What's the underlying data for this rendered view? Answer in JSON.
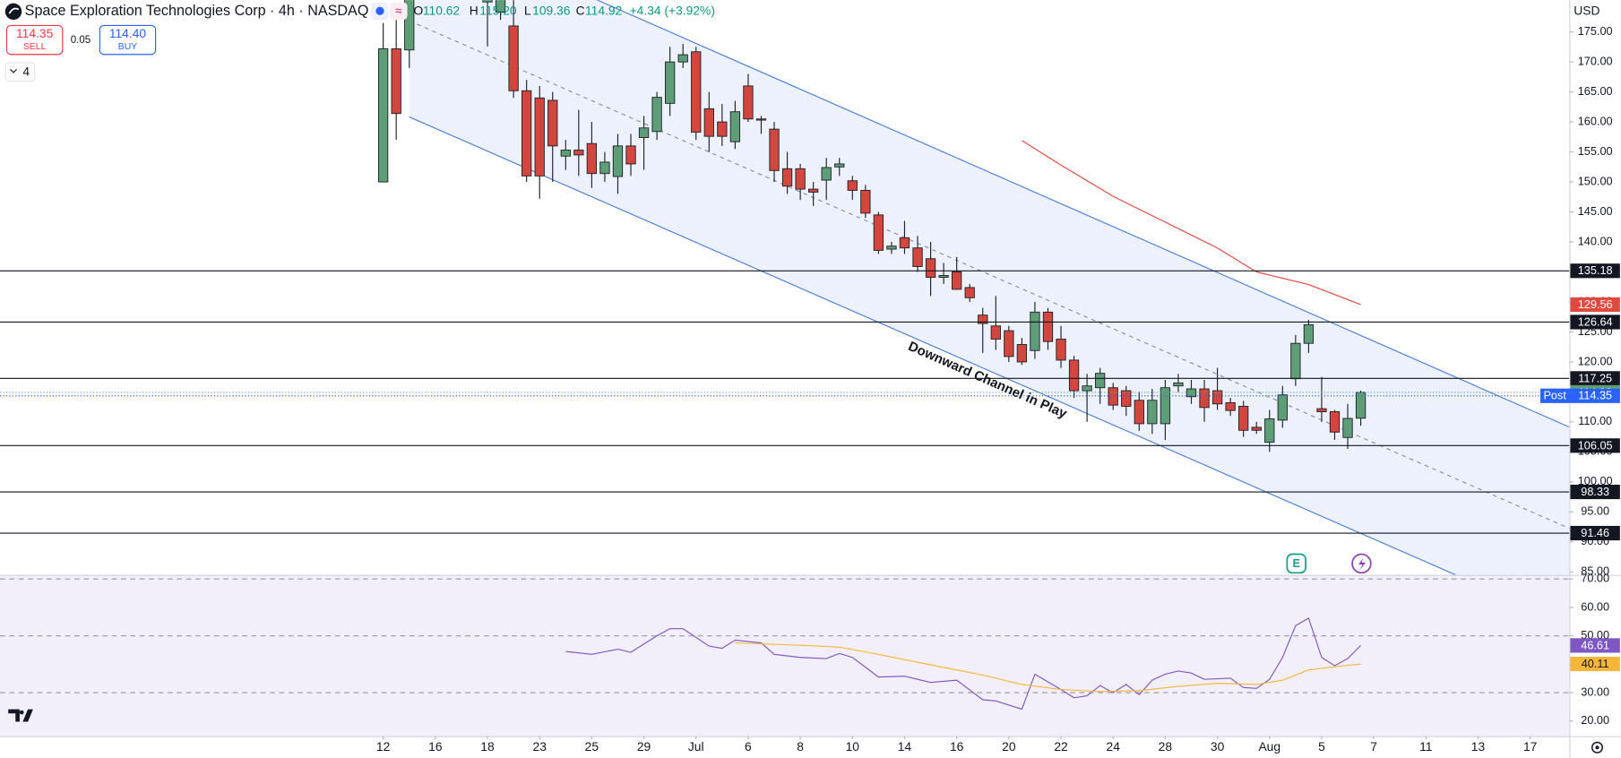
{
  "header": {
    "symbol": "Space Exploration Technologies Corp · 4h · NASDAQ",
    "ohlc": [
      {
        "label": "O",
        "value": "110.62"
      },
      {
        "label": "H",
        "value": "115.20"
      },
      {
        "label": "L",
        "value": "109.36"
      },
      {
        "label": "C",
        "value": "114.92"
      }
    ],
    "change": "+4.34 (+3.92%)"
  },
  "trade": {
    "sell_price": "114.35",
    "sell_label": "SELL",
    "spread": "0.05",
    "buy_price": "114.40",
    "buy_label": "BUY"
  },
  "indicators_count": "4",
  "currency": "USD",
  "chart_data": [
    {
      "type": "candlestick",
      "annotation": "Downward Channel in Play",
      "up_color": "#5e9e76",
      "down_color": "#d2463d",
      "x": [
        0,
        1,
        2,
        8,
        9,
        10,
        11,
        12,
        13,
        14,
        15,
        16,
        17,
        18,
        19,
        20,
        21,
        22,
        23,
        24,
        25,
        26,
        27,
        28,
        29,
        30,
        31,
        32,
        33,
        34,
        35,
        36,
        37,
        38,
        39,
        40,
        41,
        42,
        43,
        44,
        45,
        46,
        47,
        48,
        49,
        50,
        51,
        52,
        53,
        54,
        55,
        56,
        57,
        58,
        59,
        60,
        61,
        62,
        63,
        64,
        65,
        66,
        67,
        68,
        69,
        70,
        71,
        72,
        73,
        74,
        75
      ],
      "open": [
        150,
        172.2,
        172,
        180,
        178.3,
        176,
        165.2,
        164,
        163.6,
        154.3,
        155.3,
        156.4,
        151.4,
        150.9,
        156,
        157.4,
        158.4,
        163.1,
        170,
        171.7,
        162.2,
        160,
        156.7,
        166,
        160.5,
        158.8,
        152.2,
        152.2,
        148.8,
        150.3,
        152.5,
        150.2,
        148.6,
        144.5,
        138.8,
        140.7,
        139,
        137.2,
        134.1,
        135,
        132.4,
        127.8,
        126,
        125.2,
        122.9,
        121.9,
        128.3,
        123.8,
        120.3,
        115.2,
        115.7,
        115.7,
        115.2,
        113.6,
        109.7,
        109.7,
        116,
        114.2,
        115.5,
        115.2,
        113.2,
        112.6,
        109.1,
        106.6,
        110.3,
        117.2,
        123.1,
        112.2,
        111.7,
        107.4,
        110.62
      ],
      "high": [
        176.5,
        177,
        183,
        185,
        184,
        180.5,
        167,
        166,
        165,
        157,
        162,
        160,
        155,
        158,
        158,
        161,
        165,
        172.5,
        173,
        172.5,
        165,
        163,
        163.5,
        168,
        161,
        160,
        155,
        153,
        150,
        154,
        154,
        151,
        149.5,
        145,
        140,
        143.5,
        141,
        140,
        136.5,
        137.5,
        133,
        129,
        131,
        126,
        124,
        130,
        129,
        126,
        121,
        118,
        119,
        116.5,
        116,
        115,
        115.5,
        117,
        118,
        117,
        117,
        119,
        114,
        113.5,
        110,
        112,
        116,
        124.5,
        127,
        117.5,
        112,
        113,
        115.2
      ],
      "low": [
        150,
        157,
        169,
        172.6,
        177,
        164,
        150,
        147.2,
        150,
        152,
        151,
        149,
        150,
        148,
        151,
        152,
        157,
        161,
        169,
        157,
        155,
        156,
        155.5,
        160,
        158,
        150,
        148,
        147,
        146,
        147,
        151,
        147,
        144,
        138,
        138,
        138,
        135,
        131,
        133,
        132,
        130,
        121.5,
        122,
        120,
        119.5,
        120.5,
        122,
        119,
        114,
        110,
        113,
        112,
        111,
        108.5,
        108,
        107,
        115,
        113,
        110,
        112,
        111,
        107.5,
        108,
        105,
        109,
        116,
        121.5,
        110,
        107,
        105.5,
        109.36
      ],
      "close": [
        172.2,
        161.4,
        181,
        183,
        182,
        165.2,
        151,
        151,
        156,
        155.3,
        154.5,
        151.4,
        153.3,
        156,
        153,
        159,
        164.1,
        170,
        171.2,
        158.3,
        157.6,
        157.6,
        161.7,
        160.5,
        160.3,
        151.9,
        149.3,
        148.8,
        148.3,
        152.4,
        153,
        148.6,
        144.8,
        138.6,
        139.3,
        139,
        135.9,
        134.1,
        134.4,
        132.1,
        130.7,
        126.4,
        123.8,
        120.9,
        120,
        128.3,
        123.4,
        120.3,
        115.2,
        116,
        118.1,
        112.8,
        112.6,
        109.7,
        113.6,
        115.7,
        116.5,
        115.5,
        112.4,
        113,
        111.9,
        108.6,
        108.6,
        110.5,
        114.5,
        123.1,
        126.2,
        111.7,
        108.3,
        110.58,
        114.92
      ],
      "ma_line": {
        "color": "#e0493f",
        "x": [
          49,
          52,
          56,
          60,
          64,
          67,
          71,
          75
        ],
        "values": [
          156.9,
          152.8,
          147.6,
          143.3,
          139,
          135,
          132.9,
          129.56
        ]
      },
      "levels": [
        135.18,
        126.64,
        117.25,
        106.05,
        98.33,
        91.46
      ],
      "post_label": "Post",
      "post_price": 114.35,
      "post_color": "#2962ff",
      "xlim": [
        -29.4,
        91
      ],
      "xticks": [
        {
          "value": 0,
          "label": "12"
        },
        {
          "value": 4,
          "label": "16"
        },
        {
          "value": 8,
          "label": "18"
        },
        {
          "value": 12,
          "label": "23"
        },
        {
          "value": 16,
          "label": "25"
        },
        {
          "value": 20,
          "label": "29"
        },
        {
          "value": 24,
          "label": "Jul"
        },
        {
          "value": 28,
          "label": "6"
        },
        {
          "value": 32,
          "label": "8"
        },
        {
          "value": 36,
          "label": "10"
        },
        {
          "value": 40,
          "label": "14"
        },
        {
          "value": 44,
          "label": "16"
        },
        {
          "value": 48,
          "label": "20"
        },
        {
          "value": 52,
          "label": "22"
        },
        {
          "value": 56,
          "label": "24"
        },
        {
          "value": 60,
          "label": "28"
        },
        {
          "value": 64,
          "label": "30"
        },
        {
          "value": 68,
          "label": "Aug"
        },
        {
          "value": 72,
          "label": "5"
        },
        {
          "value": 76,
          "label": "7"
        },
        {
          "value": 80,
          "label": "11"
        },
        {
          "value": 84,
          "label": "13"
        },
        {
          "value": 88,
          "label": "17"
        }
      ],
      "ylim": [
        84.5,
        180.3
      ],
      "yticks": [
        {
          "value": 85,
          "label": "85.00"
        },
        {
          "value": 90,
          "label": "90.00"
        },
        {
          "value": 95,
          "label": "95.00"
        },
        {
          "value": 100,
          "label": "100.00"
        },
        {
          "value": 105,
          "label": "105.00"
        },
        {
          "value": 110,
          "label": "110.00"
        },
        {
          "value": 115,
          "label": "115.00"
        },
        {
          "value": 120,
          "label": "120.00"
        },
        {
          "value": 125,
          "label": "125.00"
        },
        {
          "value": 130,
          "label": "130.00"
        },
        {
          "value": 135,
          "label": "135.00"
        },
        {
          "value": 140,
          "label": "140.00"
        },
        {
          "value": 145,
          "label": "145.00"
        },
        {
          "value": 150,
          "label": "150.00"
        },
        {
          "value": 155,
          "label": "155.00"
        },
        {
          "value": 160,
          "label": "160.00"
        },
        {
          "value": 165,
          "label": "165.00"
        },
        {
          "value": 170,
          "label": "170.00"
        },
        {
          "value": 175,
          "label": "175.00"
        }
      ]
    },
    {
      "type": "line",
      "series": [
        {
          "color": "#7e57c2",
          "x": [
            14,
            16,
            18,
            19,
            21,
            22,
            23,
            25,
            26,
            27,
            29,
            30,
            32,
            34,
            35,
            36,
            38,
            40,
            42,
            44,
            46,
            47,
            49,
            50,
            52,
            53,
            54,
            55,
            56,
            57,
            58,
            59,
            60,
            61,
            62,
            63,
            65,
            66,
            67,
            68,
            69,
            70,
            71,
            72,
            73,
            74,
            75
          ],
          "values": [
            44.5,
            43.5,
            45.3,
            44.2,
            50,
            52.5,
            52.5,
            46.4,
            45.6,
            48.5,
            47.5,
            43.5,
            42.4,
            42,
            43.8,
            42.4,
            35.5,
            35.8,
            33.6,
            34.4,
            27.5,
            27.1,
            24.2,
            36.5,
            31.1,
            28.2,
            28.9,
            32.5,
            30,
            32.9,
            29.3,
            34.4,
            36.5,
            37.6,
            36.9,
            34.7,
            35.1,
            31.8,
            31.5,
            34.7,
            42.4,
            53.6,
            56.2,
            42.4,
            39.5,
            42,
            46.61
          ]
        },
        {
          "color": "#f5b73b",
          "x": [
            27,
            32,
            35,
            38,
            42,
            46,
            49,
            52,
            55,
            58,
            61,
            64,
            67,
            69,
            71,
            73,
            75
          ],
          "values": [
            47.5,
            46.7,
            46,
            43.5,
            39.8,
            36.2,
            32.9,
            31.1,
            30.4,
            30.7,
            32.2,
            33.3,
            32.9,
            34.4,
            38,
            39.1,
            40.11
          ]
        }
      ],
      "levels": [
        70,
        50,
        30
      ],
      "ylim": [
        14.7,
        71.45
      ],
      "yticks": [
        {
          "value": 70,
          "label": "70.00"
        },
        {
          "value": 60,
          "label": "60.00"
        },
        {
          "value": 50,
          "label": "50.00"
        },
        {
          "value": 40,
          "label": "40.00"
        },
        {
          "value": 30,
          "label": "30.00"
        },
        {
          "value": 20,
          "label": "20.00"
        }
      ]
    }
  ]
}
